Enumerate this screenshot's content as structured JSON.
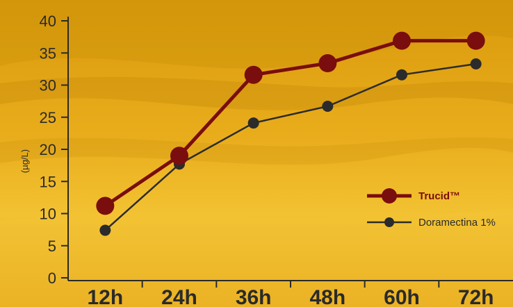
{
  "chart_data": {
    "type": "line",
    "categories": [
      "12h",
      "24h",
      "36h",
      "48h",
      "60h",
      "72h"
    ],
    "series": [
      {
        "name": "Trucid™",
        "values": [
          11.2,
          19.0,
          31.6,
          33.4,
          36.9,
          36.9
        ],
        "color": "#7a0d0d"
      },
      {
        "name": "Doramectina 1%",
        "values": [
          7.4,
          17.7,
          24.1,
          26.7,
          31.6,
          33.3
        ],
        "color": "#2b2b2b"
      }
    ],
    "title": "",
    "xlabel": "",
    "ylabel": "(µg/L)",
    "ylim": [
      0,
      40
    ],
    "yticks": [
      0,
      5,
      10,
      15,
      20,
      25,
      30,
      35,
      40
    ],
    "grid": false,
    "legend_position": "right"
  },
  "colors": {
    "background_light": "#f0bf2e",
    "background_dark": "#c98a07",
    "axis": "#2a2a2a"
  }
}
